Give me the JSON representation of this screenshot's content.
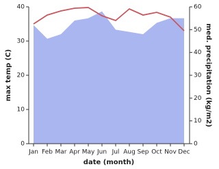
{
  "chart_data": {
    "type": "combo",
    "categories": [
      "Jan",
      "Feb",
      "Mar",
      "Apr",
      "May",
      "Jun",
      "Jul",
      "Aug",
      "Sep",
      "Oct",
      "Nov",
      "Dec"
    ],
    "x_label": "date (month)",
    "y_label": "max temp (C)",
    "y2_label": "med. precipitation (kg/m2)",
    "ylim": [
      0,
      40
    ],
    "yticks": [
      0,
      10,
      20,
      30,
      40
    ],
    "y2lim": [
      0,
      60
    ],
    "y2ticks": [
      0,
      10,
      20,
      30,
      40,
      50,
      60
    ],
    "series": [
      {
        "name": "max temp",
        "type": "line",
        "color": "#c9575e",
        "values": [
          35,
          37.6,
          38.8,
          39.6,
          39.8,
          37.4,
          36,
          39.4,
          37.6,
          38.4,
          37,
          33
        ]
      },
      {
        "name": "med. precipitation",
        "type": "area",
        "axis": "y2",
        "color": "#aab6f0",
        "values": [
          52,
          46,
          48,
          54,
          55,
          58,
          50,
          49,
          48,
          53,
          55,
          55
        ]
      }
    ]
  }
}
